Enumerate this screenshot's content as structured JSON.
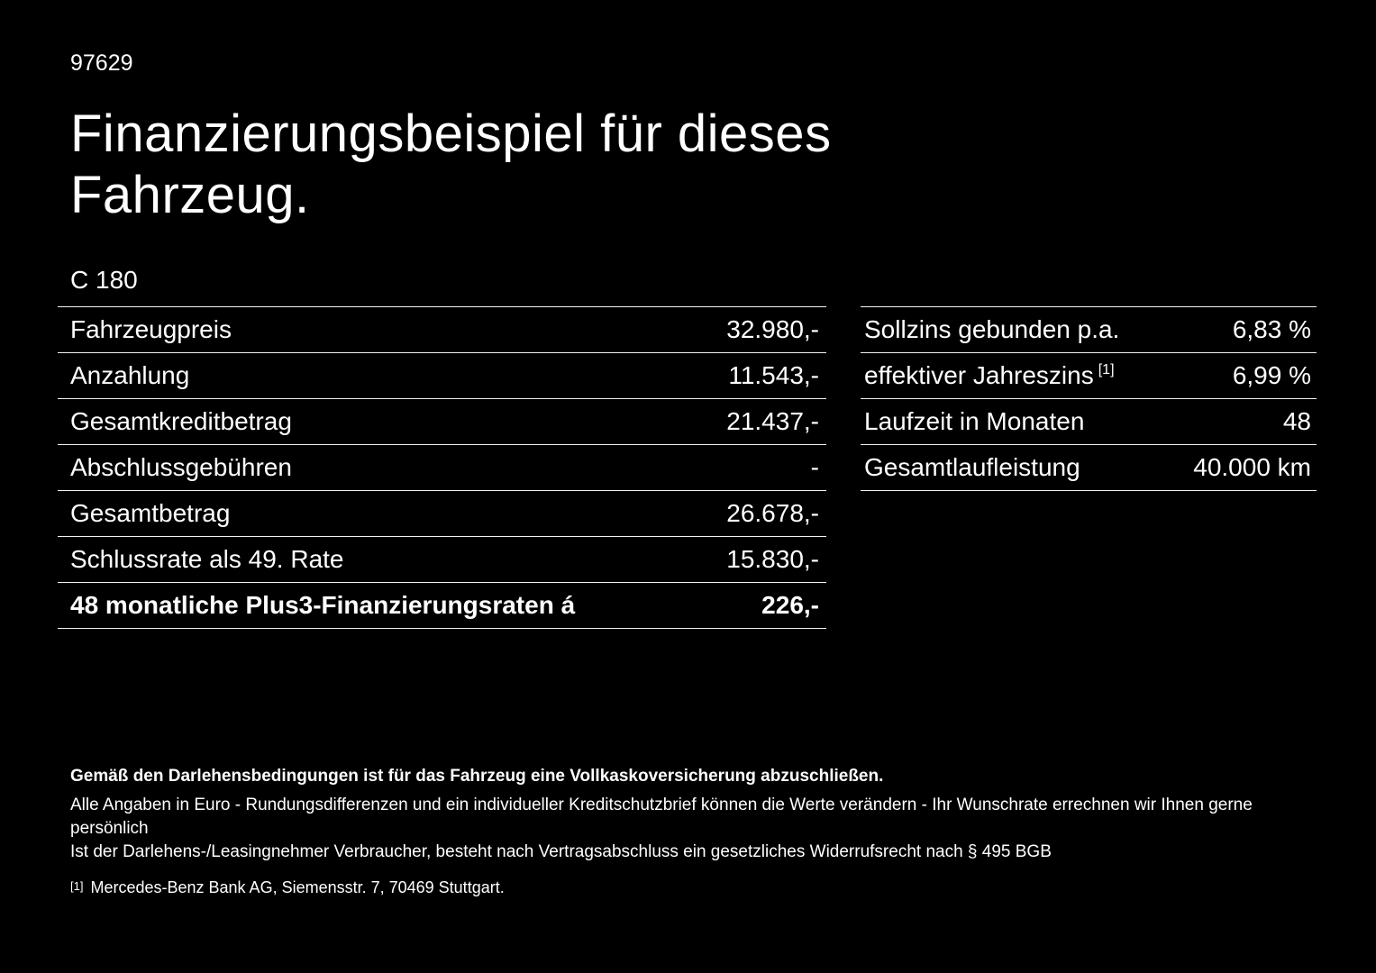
{
  "page": {
    "id_number": "97629",
    "title": "Finanzierungsbeispiel für dieses Fahrzeug.",
    "model": "C 180",
    "background_color": "#000000",
    "text_color": "#ffffff"
  },
  "left_table": {
    "rows": [
      {
        "label": "Fahrzeugpreis",
        "value": "32.980,-"
      },
      {
        "label": "Anzahlung",
        "value": "11.543,-"
      },
      {
        "label": "Gesamtkreditbetrag",
        "value": "21.437,-"
      },
      {
        "label": "Abschlussgebühren",
        "value": "-"
      },
      {
        "label": "Gesamtbetrag",
        "value": "26.678,-"
      },
      {
        "label": "Schlussrate als 49. Rate",
        "value": "15.830,-"
      },
      {
        "label": "48 monatliche Plus3-Finanzierungsraten á",
        "value": "226,-"
      }
    ]
  },
  "right_table": {
    "rows": [
      {
        "label": "Sollzins gebunden p.a.",
        "superscript": "",
        "value": "6,83 %"
      },
      {
        "label": "effektiver Jahreszins",
        "superscript": "[1]",
        "value": "6,99 %"
      },
      {
        "label": "Laufzeit in Monaten",
        "superscript": "",
        "value": "48"
      },
      {
        "label": "Gesamtlaufleistung",
        "superscript": "",
        "value": "40.000 km"
      }
    ]
  },
  "footnotes": {
    "bold_note": "Gemäß den Darlehensbedingungen ist für das Fahrzeug eine Vollkaskoversicherung abzuschließen.",
    "note1": "Alle Angaben in Euro - Rundungsdifferenzen und ein individueller Kreditschutzbrief können die Werte verändern - Ihr Wunschrate errechnen wir Ihnen gerne persönlich",
    "note2": "Ist der Darlehens-/Leasingnehmer Verbraucher, besteht nach Vertragsabschluss ein gesetzliches Widerrufsrecht nach § 495 BGB",
    "reference_marker": "[1]",
    "reference_text": "Mercedes-Benz Bank AG, Siemensstr. 7, 70469 Stuttgart."
  }
}
